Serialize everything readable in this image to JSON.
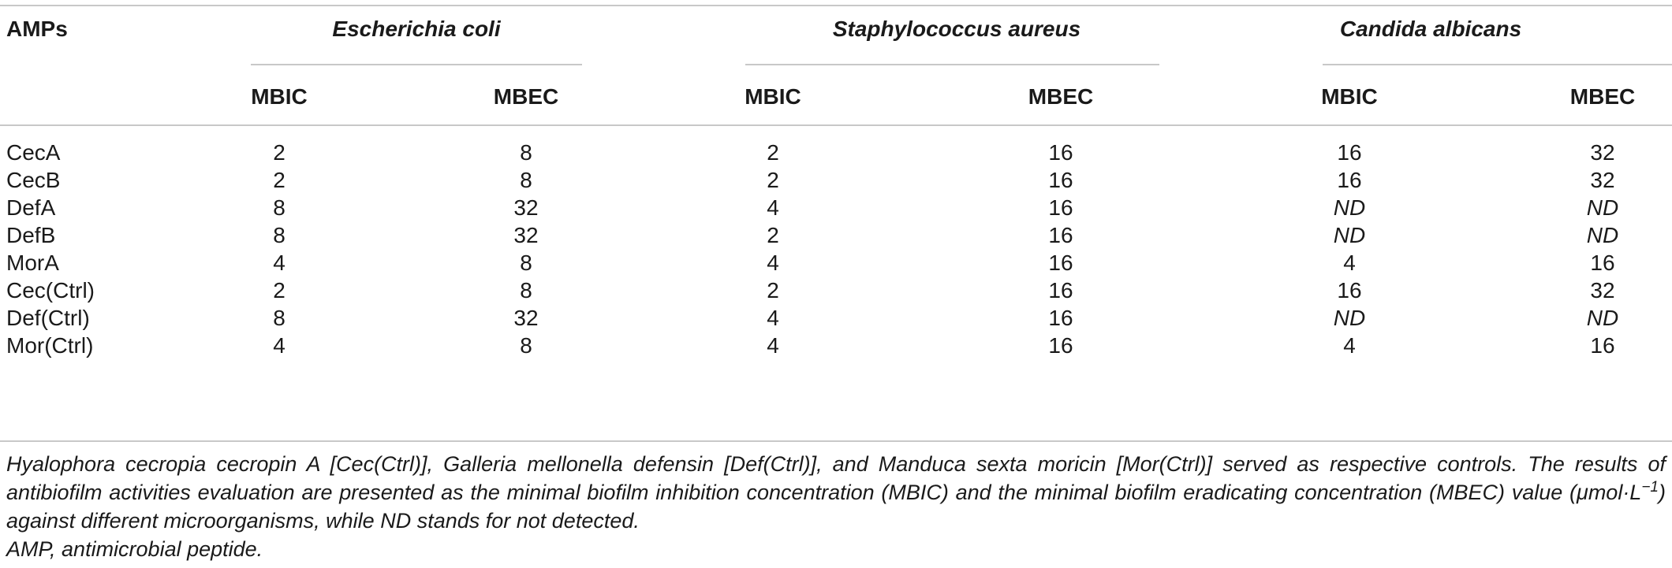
{
  "header": {
    "first_col": "AMPs",
    "organisms": [
      "Escherichia coli",
      "Staphylococcus aureus",
      "Candida albicans"
    ],
    "subcols": [
      "MBIC",
      "MBEC",
      "MBIC",
      "MBEC",
      "MBIC",
      "MBEC"
    ]
  },
  "rows": [
    {
      "name": "CecA",
      "v": [
        "2",
        "8",
        "2",
        "16",
        "16",
        "32"
      ]
    },
    {
      "name": "CecB",
      "v": [
        "2",
        "8",
        "2",
        "16",
        "16",
        "32"
      ]
    },
    {
      "name": "DefA",
      "v": [
        "8",
        "32",
        "4",
        "16",
        "ND",
        "ND"
      ]
    },
    {
      "name": "DefB",
      "v": [
        "8",
        "32",
        "2",
        "16",
        "ND",
        "ND"
      ]
    },
    {
      "name": "MorA",
      "v": [
        "4",
        "8",
        "4",
        "16",
        "4",
        "16"
      ]
    },
    {
      "name": "Cec(Ctrl)",
      "v": [
        "2",
        "8",
        "2",
        "16",
        "16",
        "32"
      ]
    },
    {
      "name": "Def(Ctrl)",
      "v": [
        "8",
        "32",
        "4",
        "16",
        "ND",
        "ND"
      ]
    },
    {
      "name": "Mor(Ctrl)",
      "v": [
        "4",
        "8",
        "4",
        "16",
        "4",
        "16"
      ]
    }
  ],
  "footnote": {
    "main": "Hyalophora cecropia cecropin A [Cec(Ctrl)], Galleria mellonella defensin [Def(Ctrl)], and Manduca sexta moricin [Mor(Ctrl)] served as respective controls. The results of antibiofilm activities evaluation are presented as the minimal biofilm inhibition concentration (MBIC) and the minimal biofilm eradicating concentration (MBEC) value (μmol·L",
    "exponent": "−1",
    "tail": ") against different microorganisms, while ND stands for not detected.",
    "abbrev": "AMP, antimicrobial peptide."
  }
}
